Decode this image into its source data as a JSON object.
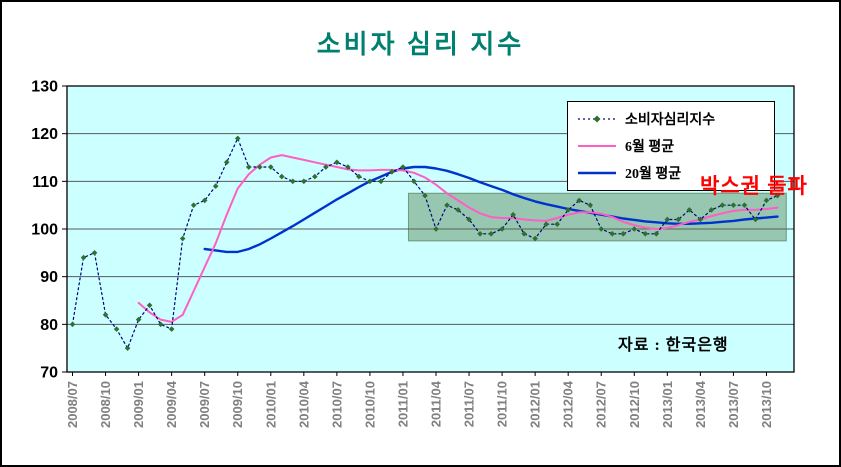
{
  "chart_data": {
    "type": "line",
    "title": "소비자 심리 지수",
    "title_color": "#008070",
    "plot_bg": "#ccffff",
    "grid_color": "#595959",
    "axis_color": "#000000",
    "x_label_color": "#808080",
    "ylim": [
      70,
      130
    ],
    "ytick_interval": 10,
    "y_axis_labels": [
      "70",
      "80",
      "90",
      "100",
      "110",
      "120",
      "130"
    ],
    "months_total": 66,
    "tick_every": 3,
    "x_tick_labels": [
      "2008/07",
      "2008/10",
      "2009/01",
      "2009/04",
      "2009/07",
      "2009/10",
      "2010/01",
      "2010/04",
      "2010/07",
      "2010/10",
      "2011/01",
      "2011/04",
      "2011/07",
      "2011/10",
      "2012/01",
      "2012/04",
      "2012/07",
      "2012/10",
      "2013/01",
      "2013/04",
      "2013/07",
      "2013/10"
    ],
    "series": [
      {
        "name": "소비자심리지수",
        "color": "#000080",
        "dash": "2 3",
        "width": 1.2,
        "marker": "diamond",
        "marker_color": "#2e7031",
        "start_month": 0,
        "values": [
          80,
          94,
          95,
          82,
          79,
          75,
          81,
          84,
          80,
          79,
          98,
          105,
          106,
          109,
          114,
          119,
          113,
          113,
          113,
          111,
          110,
          110,
          111,
          113,
          114,
          113,
          111,
          110,
          110,
          112,
          113,
          110,
          107,
          100,
          105,
          104,
          102,
          99,
          99,
          100,
          103,
          99,
          98,
          101,
          101,
          104,
          106,
          105,
          100,
          99,
          99,
          100,
          99,
          99,
          102,
          102,
          104,
          102,
          104,
          105,
          105,
          105,
          102,
          106,
          107
        ]
      },
      {
        "name": "6월 평균",
        "color": "#ff5ec4",
        "width": 2,
        "start_month": 6,
        "values": [
          84.5,
          82.5,
          81,
          80.5,
          82,
          87,
          92,
          97,
          103,
          108.5,
          111.5,
          113.5,
          115,
          115.5,
          115,
          114.5,
          114,
          113.5,
          113,
          112.5,
          112.3,
          112.3,
          112.4,
          112.4,
          112.3,
          111.8,
          110.8,
          109.3,
          107.5,
          106,
          104.5,
          103.3,
          102.5,
          102.3,
          102.3,
          102,
          101.8,
          101.7,
          102.3,
          103,
          103.5,
          103.5,
          103.2,
          102.5,
          101.5,
          100.8,
          100.3,
          100,
          100.2,
          100.8,
          101.5,
          102,
          102.7,
          103.3,
          103.8,
          104,
          104,
          104.2,
          104.5
        ]
      },
      {
        "name": "20월 평균",
        "color": "#0033cc",
        "width": 2.4,
        "start_month": 12,
        "values": [
          95.8,
          95.5,
          95.2,
          95.2,
          95.8,
          96.8,
          98,
          99.3,
          100.6,
          102,
          103.4,
          104.8,
          106.2,
          107.5,
          108.8,
          110,
          111,
          112,
          112.7,
          113,
          113,
          112.7,
          112.2,
          111.5,
          110.7,
          109.8,
          109,
          108.2,
          107.3,
          106.5,
          105.8,
          105.2,
          104.7,
          104.2,
          103.8,
          103.4,
          103,
          102.6,
          102.2,
          101.9,
          101.6,
          101.4,
          101.2,
          101.1,
          101.1,
          101.2,
          101.3,
          101.5,
          101.7,
          102,
          102.2,
          102.4,
          102.6
        ]
      }
    ],
    "highlight_box": {
      "from_month": 31,
      "to_month": 65.3,
      "y_low": 97.5,
      "y_high": 107.5,
      "color": "#4f7942",
      "opacity": 0.42,
      "border": "#3c5c30"
    },
    "annotation": {
      "text": "박스권 돌파",
      "color": "#ff0000"
    },
    "source": "자료 : 한국은행"
  }
}
